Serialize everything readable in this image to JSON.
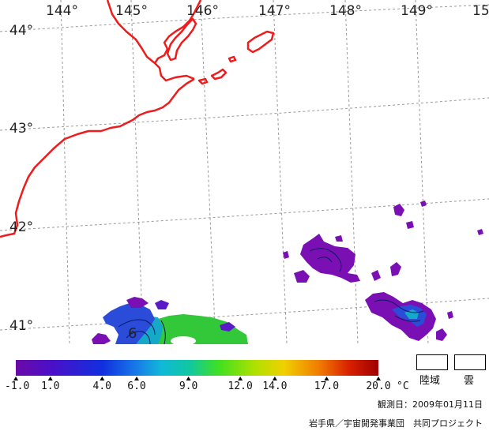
{
  "map": {
    "lon_labels": [
      "144°",
      "145°",
      "146°",
      "147°",
      "148°",
      "149°",
      "15"
    ],
    "lat_labels": [
      "44°",
      "43°",
      "42°",
      "41°"
    ],
    "isotherm_label": "6",
    "colors": {
      "coast": "#ee1c1c",
      "grid": "#9a9a9a",
      "purple": "#7a10b4",
      "blue": "#2a4cd8",
      "cyan": "#15a8c8",
      "green": "#33c83a"
    }
  },
  "colorbar": {
    "ticks": [
      "-1.0",
      "1.0",
      "4.0",
      "6.0",
      "9.0",
      "12.0",
      "14.0",
      "17.0",
      "20.0"
    ],
    "unit": "°C",
    "vmin": -1.0,
    "vmax": 20.0
  },
  "legend": {
    "land": "陸域",
    "cloud": "雲"
  },
  "footer": {
    "observation_date": "観測日：2009年01月11日",
    "credit": "岩手県／宇宙開発事業団　共同プロジェクト"
  }
}
